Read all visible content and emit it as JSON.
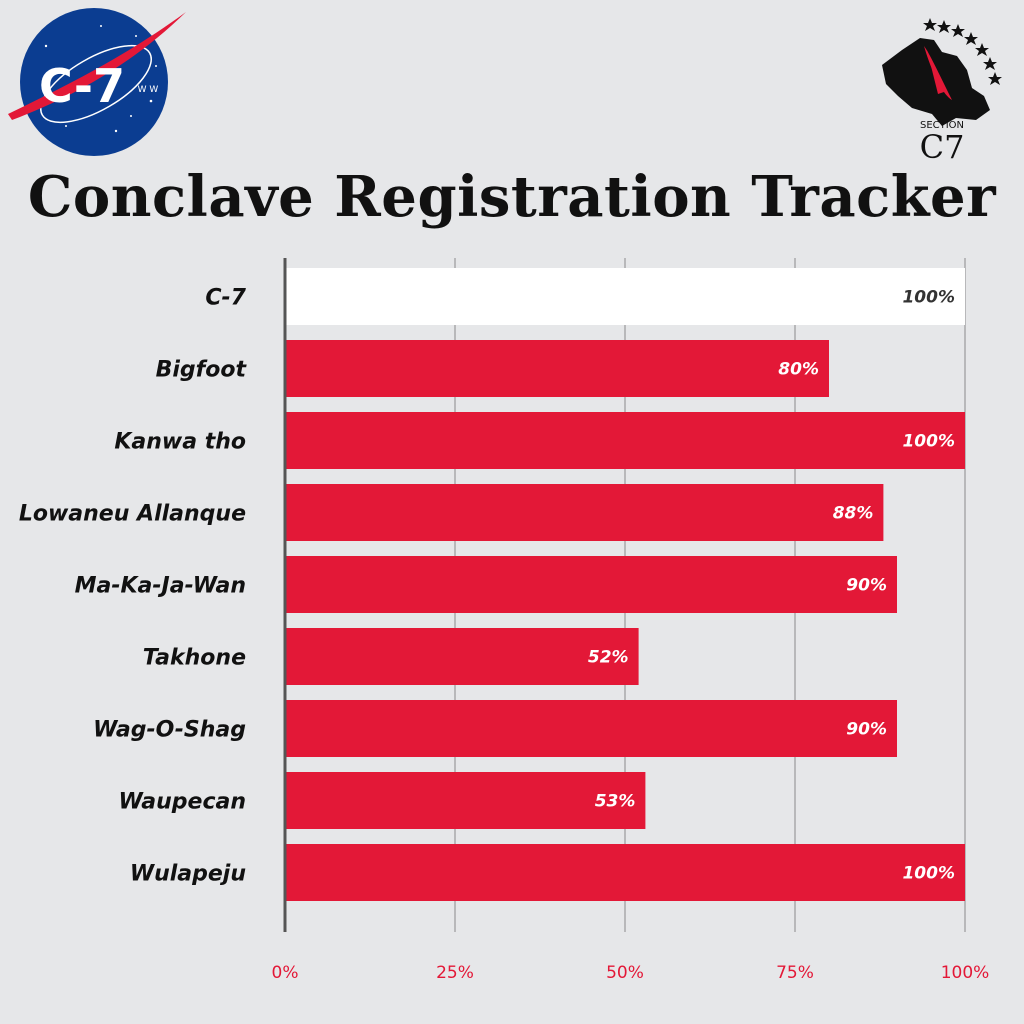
{
  "header": {
    "title": "Conclave Registration Tracker",
    "logo_left": {
      "text": "C-7",
      "small_text": "W W"
    },
    "logo_right": {
      "small_text": "SECTION",
      "big_text": "C7"
    }
  },
  "colors": {
    "bar": "#e31837",
    "highlight_bar": "#ffffff",
    "background": "#e6e7e9",
    "grid": "#8a8a8a",
    "axis": "#555555",
    "tick_label": "#e31837",
    "logo_blue": "#0b3d91"
  },
  "chart_data": {
    "type": "bar",
    "orientation": "horizontal",
    "title": "Conclave Registration Tracker",
    "categories": [
      "C-7",
      "Bigfoot",
      "Kanwa tho",
      "Lowaneu Allanque",
      "Ma-Ka-Ja-Wan",
      "Takhone",
      "Wag-O-Shag",
      "Waupecan",
      "Wulapeju"
    ],
    "values": [
      100,
      80,
      100,
      88,
      90,
      52,
      90,
      53,
      100
    ],
    "value_labels": [
      "100%",
      "80%",
      "100%",
      "88%",
      "90%",
      "52%",
      "90%",
      "53%",
      "100%"
    ],
    "highlight_index": 0,
    "x_ticks": [
      0,
      25,
      50,
      75,
      100
    ],
    "x_tick_labels": [
      "0%",
      "25%",
      "50%",
      "75%",
      "100%"
    ],
    "xlim": [
      0,
      100
    ],
    "grid": true,
    "legend": "none"
  }
}
